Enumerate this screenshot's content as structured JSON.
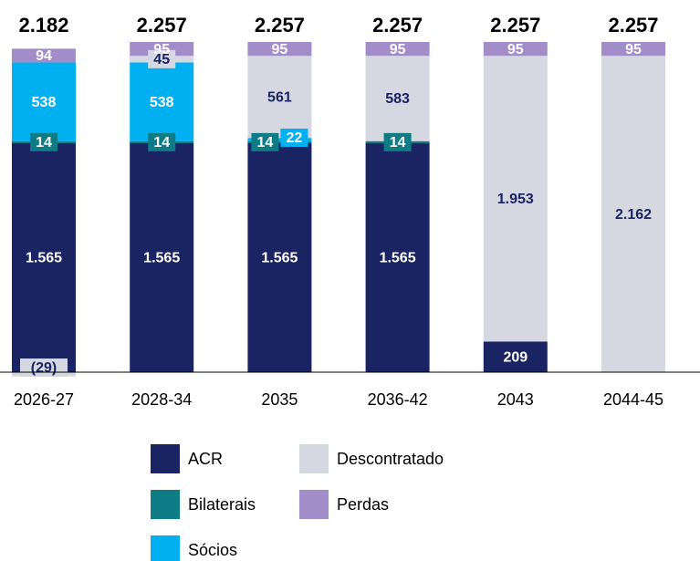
{
  "chart_data": {
    "type": "stacked_bar",
    "categories": [
      "2026-27",
      "2028-34",
      "2035",
      "2036-42",
      "2043",
      "2044-45"
    ],
    "series": [
      {
        "name": "ACR",
        "color": "#1b2462",
        "values": [
          1565,
          1565,
          1565,
          1565,
          209,
          null
        ],
        "value_labels": [
          "1.565",
          "1.565",
          "1.565",
          "1.565",
          "209",
          null
        ]
      },
      {
        "name": "Bilaterais",
        "color": "#0e7c86",
        "values": [
          14,
          14,
          14,
          14,
          null,
          null
        ]
      },
      {
        "name": "Sócios",
        "color": "#00b0f0",
        "values": [
          538,
          538,
          22,
          null,
          null,
          null
        ]
      },
      {
        "name": "Descontratado",
        "color": "#d5d7e1",
        "values": [
          -29,
          45,
          561,
          583,
          1953,
          2162
        ],
        "value_labels": [
          "(29)",
          "45",
          "561",
          "583",
          "1.953",
          "2.162"
        ]
      },
      {
        "name": "Perdas",
        "color": "#a38dc9",
        "values": [
          94,
          95,
          95,
          95,
          95,
          95
        ]
      }
    ],
    "totals": {
      "values": [
        2182,
        2257,
        2257,
        2257,
        2257,
        2257
      ],
      "value_labels": [
        "2.182",
        "2.257",
        "2.257",
        "2.257",
        "2.257",
        "2.257"
      ]
    }
  }
}
